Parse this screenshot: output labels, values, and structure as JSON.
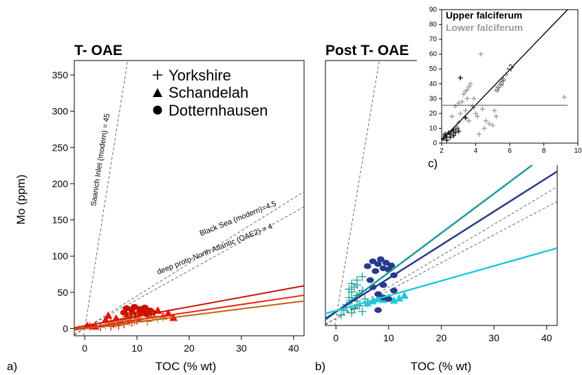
{
  "chart_data": [
    {
      "panel": "a)",
      "type": "scatter",
      "title": "T- OAE",
      "xlabel": "TOC (% wt)",
      "ylabel": "Mo (ppm)",
      "xlim": [
        -2,
        42
      ],
      "ylim": [
        -10,
        370
      ],
      "xticks": [
        0,
        10,
        20,
        30,
        40
      ],
      "yticks": [
        0,
        50,
        100,
        150,
        200,
        250,
        300,
        350
      ],
      "legend": [
        {
          "name": "Yorkshire",
          "marker": "+"
        },
        {
          "name": "Schandelah",
          "marker": "triangle"
        },
        {
          "name": "Dotternhausen",
          "marker": "circle"
        }
      ],
      "reference_lines": [
        {
          "label": "Saanich Inlet (modern) = 45",
          "slope": 45
        },
        {
          "label": "Black Sea (modern)=4.5",
          "slope": 4.5
        },
        {
          "label": "deep proto-North Atlantic (OAE2) = 4",
          "slope": 4
        }
      ],
      "fit_lines": [
        {
          "color": "#cc1100",
          "x": [
            -2,
            42
          ],
          "y": [
            1,
            59
          ]
        },
        {
          "color": "#ee2211",
          "x": [
            -2,
            42
          ],
          "y": [
            -1,
            46
          ]
        },
        {
          "color": "#c06010",
          "x": [
            -2,
            42
          ],
          "y": [
            -2,
            38
          ]
        }
      ],
      "series": [
        {
          "marker": "+",
          "color": "#cc1100",
          "x": [
            1,
            2,
            3,
            4,
            5,
            5.5,
            6,
            6.5,
            7,
            7.5,
            8,
            8.5,
            9,
            9.5,
            10,
            11,
            12,
            13
          ],
          "y": [
            3,
            4,
            2,
            5,
            3,
            6,
            7,
            4,
            9,
            6,
            12,
            10,
            8,
            15,
            11,
            14,
            10,
            16
          ]
        },
        {
          "marker": "triangle",
          "color": "#ee1100",
          "x": [
            0.5,
            2,
            4,
            4.5,
            5,
            6,
            7,
            8,
            8.5,
            9,
            10,
            11,
            12,
            13,
            14,
            15,
            16,
            17
          ],
          "y": [
            4,
            3,
            12,
            18,
            8,
            14,
            10,
            20,
            13,
            24,
            18,
            22,
            26,
            19,
            25,
            17,
            21,
            15
          ]
        },
        {
          "marker": "circle",
          "color": "#cc1100",
          "x": [
            7.5,
            8,
            8.5,
            9,
            9.5,
            10,
            10.5,
            11,
            11.5,
            12,
            12.5,
            13
          ],
          "y": [
            22,
            28,
            18,
            26,
            30,
            20,
            27,
            24,
            29,
            19,
            25,
            22
          ]
        },
        {
          "marker": "+",
          "color": "#c8a040",
          "x": [
            4,
            5,
            6,
            6.5,
            7,
            7.5,
            8,
            8.5,
            9,
            9.5,
            10,
            11,
            12,
            13,
            14,
            15
          ],
          "y": [
            5,
            8,
            6,
            11,
            9,
            13,
            10,
            15,
            12,
            9,
            16,
            14,
            11,
            17,
            13,
            15
          ]
        }
      ]
    },
    {
      "panel": "b)",
      "type": "scatter",
      "title": "Post T- OAE",
      "xlabel": "TOC (% wt)",
      "xlim": [
        -2,
        42
      ],
      "ylim": [
        -10,
        370
      ],
      "xticks": [
        0,
        10,
        20,
        30,
        40
      ],
      "fit_lines": [
        {
          "color": "#1a9a96",
          "x": [
            -2,
            42
          ],
          "y": [
            -2,
            247
          ]
        },
        {
          "color": "#283a8a",
          "x": [
            -2,
            42
          ],
          "y": [
            0,
            211
          ]
        },
        {
          "color": "#20c8d8",
          "x": [
            -2,
            42
          ],
          "y": [
            7,
            101
          ]
        }
      ],
      "series": [
        {
          "marker": "+",
          "color": "#1a9a96",
          "x": [
            1,
            1.5,
            2,
            2.5,
            3,
            3,
            3.5,
            3.5,
            4,
            4,
            4.5,
            4.5,
            5,
            5,
            5.5,
            6,
            2.5,
            3,
            4,
            3.5,
            5,
            4,
            3,
            2
          ],
          "y": [
            5,
            12,
            20,
            30,
            8,
            38,
            15,
            45,
            25,
            55,
            18,
            35,
            10,
            60,
            28,
            22,
            42,
            50,
            33,
            14,
            40,
            48,
            26,
            16
          ]
        },
        {
          "marker": "triangle",
          "color": "#20c8d8",
          "x": [
            6,
            7,
            8,
            9,
            10,
            11,
            12,
            13
          ],
          "y": [
            22,
            25,
            28,
            27,
            30,
            26,
            29,
            33
          ]
        },
        {
          "marker": "circle",
          "color": "#283a8a",
          "x": [
            6,
            7,
            7.5,
            8,
            8.5,
            9,
            9.5,
            10,
            10.5,
            11,
            6.5,
            7,
            8,
            9,
            10,
            9,
            11,
            8
          ],
          "y": [
            75,
            82,
            68,
            78,
            85,
            72,
            80,
            70,
            76,
            62,
            55,
            45,
            35,
            30,
            28,
            48,
            40,
            12
          ]
        }
      ]
    },
    {
      "panel": "c)",
      "type": "scatter",
      "title": "",
      "xlim": [
        2,
        10
      ],
      "ylim": [
        0,
        90
      ],
      "xticks": [
        2,
        4,
        6,
        8,
        10
      ],
      "yticks": [
        0,
        10,
        20,
        30,
        40,
        50,
        60,
        70,
        80,
        90
      ],
      "legend": [
        {
          "name": "Upper falciferum",
          "color": "#000000"
        },
        {
          "name": "Lower falciferum",
          "color": "#999999"
        }
      ],
      "annotation": "slope = 12",
      "fit_lines": [
        {
          "color": "#000000",
          "x": [
            2,
            9.4
          ],
          "y": [
            2,
            90
          ]
        },
        {
          "color": "#807070",
          "x": [
            2,
            9.4
          ],
          "y": [
            25.5,
            25.5
          ]
        }
      ],
      "series": [
        {
          "name": "Upper falciferum",
          "marker": "+",
          "color": "#000000",
          "x": [
            2.1,
            2.2,
            2.3,
            2.4,
            2.5,
            2.6,
            2.7,
            2.8,
            2.9,
            3.0,
            3.1,
            3.4,
            2.3,
            2.5,
            2.7,
            2.2
          ],
          "y": [
            3,
            5,
            4,
            7,
            6,
            8,
            9,
            7,
            10,
            8,
            44,
            17,
            2,
            4,
            5,
            6
          ]
        },
        {
          "name": "Lower falciferum",
          "marker": "+",
          "color": "#999999",
          "x": [
            2.6,
            2.8,
            3.0,
            3.1,
            3.3,
            3.4,
            3.5,
            3.6,
            3.7,
            3.8,
            3.9,
            4.0,
            4.1,
            4.3,
            4.4,
            4.6,
            4.8,
            5.0,
            5.1,
            5.2,
            9.2,
            3.2,
            3.5,
            3.9,
            4.2,
            3.4,
            3.6,
            4.5,
            3.0,
            2.9
          ],
          "y": [
            18,
            25,
            27,
            20,
            33,
            35,
            30,
            38,
            40,
            25,
            30,
            20,
            18,
            60,
            23,
            15,
            13,
            12,
            22,
            18,
            31,
            28,
            36,
            24,
            6,
            22,
            15,
            10,
            14,
            11
          ]
        }
      ]
    }
  ]
}
